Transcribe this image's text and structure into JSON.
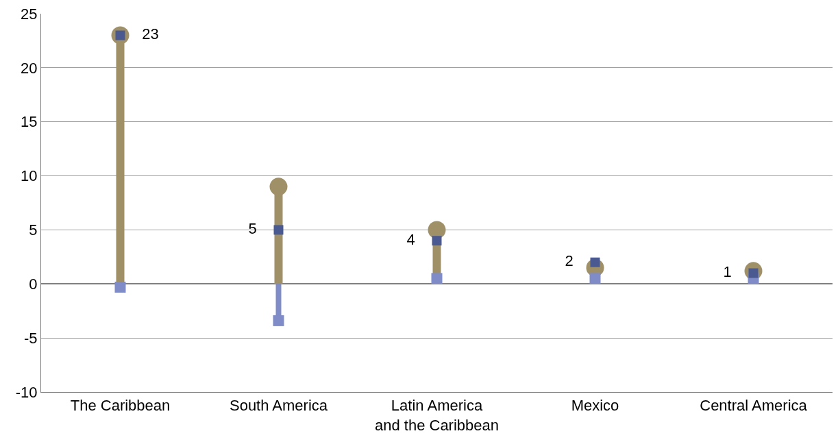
{
  "chart_data": {
    "type": "lollipop",
    "categories": [
      "The Caribbean",
      "South America",
      "Latin America and the Caribbean",
      "Mexico",
      "Central America"
    ],
    "series": [
      {
        "color": "#a09068",
        "marker": "circle",
        "values": [
          23,
          9,
          5,
          1.5,
          1.2
        ]
      },
      {
        "color": "#7f8cc8",
        "marker": "square",
        "values": [
          -0.3,
          -3.4,
          0.5,
          0.5,
          0.5
        ]
      },
      {
        "type": "scatter",
        "color": "#4a5a90",
        "marker": "square",
        "values": [
          23,
          5,
          4,
          2,
          1
        ],
        "value_labels": [
          "23",
          "5",
          "4",
          "2",
          "1"
        ]
      }
    ],
    "ylim": [
      -10,
      25
    ],
    "yticks": [
      -10,
      -5,
      0,
      5,
      10,
      15,
      20,
      25
    ],
    "grid": "y"
  }
}
